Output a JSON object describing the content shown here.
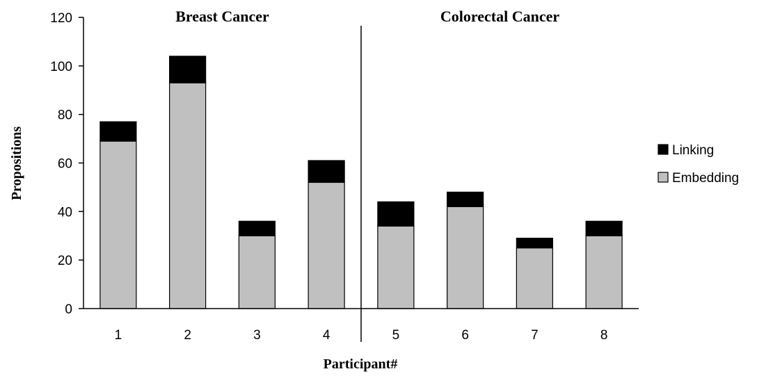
{
  "chart_data": {
    "type": "bar",
    "stacked": true,
    "title": "",
    "xlabel": "Participant#",
    "ylabel": "Propositions",
    "ylim": [
      0,
      120
    ],
    "yticks": [
      0,
      20,
      40,
      60,
      80,
      100,
      120
    ],
    "categories": [
      "1",
      "2",
      "3",
      "4",
      "5",
      "6",
      "7",
      "8"
    ],
    "groups": [
      {
        "label": "Breast Cancer",
        "categories": [
          "1",
          "2",
          "3",
          "4"
        ]
      },
      {
        "label": "Colorectal Cancer",
        "categories": [
          "5",
          "6",
          "7",
          "8"
        ]
      }
    ],
    "series": [
      {
        "name": "Embedding",
        "color": "#c0c0c0",
        "values": [
          69,
          93,
          30,
          52,
          34,
          42,
          25,
          30
        ]
      },
      {
        "name": "Linking",
        "color": "#000000",
        "values": [
          8,
          11,
          6,
          9,
          10,
          6,
          4,
          6
        ]
      }
    ],
    "grid": false,
    "legend_position": "right"
  }
}
